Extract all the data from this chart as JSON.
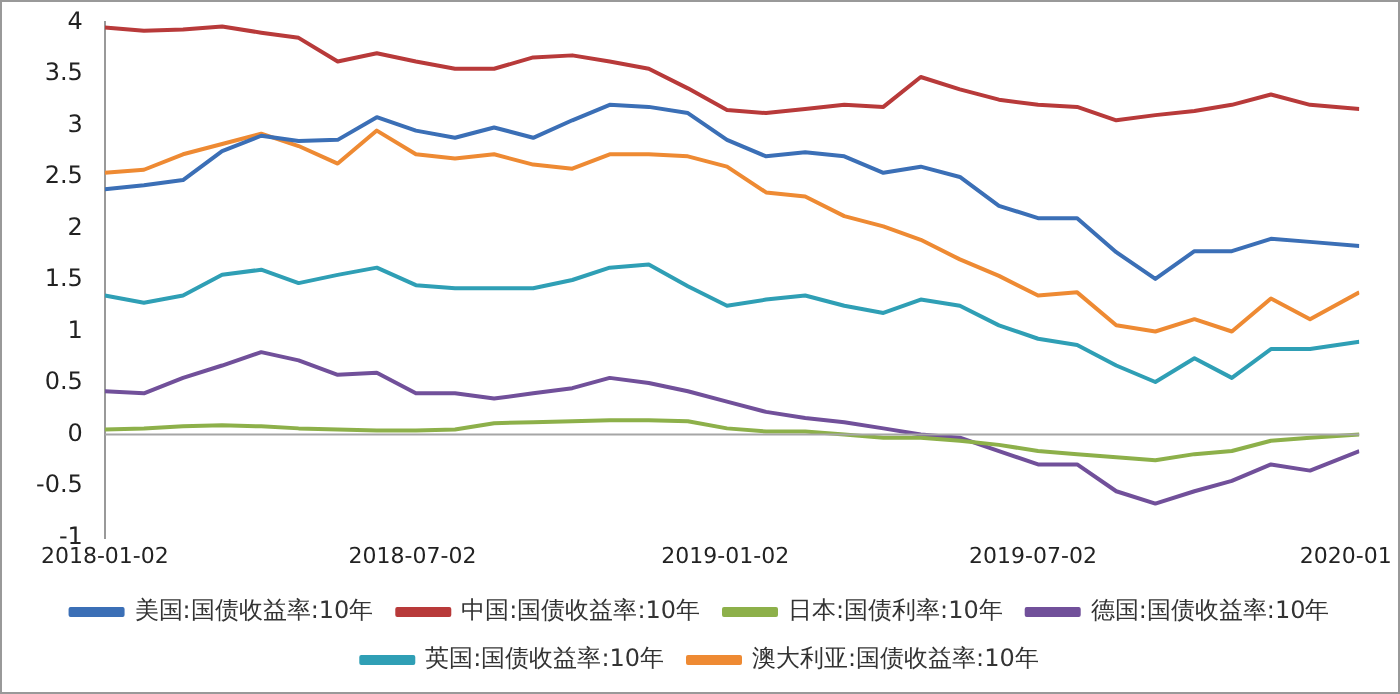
{
  "chart_data": {
    "type": "line",
    "x": [
      "2018-01-02",
      "2018-01-25",
      "2018-02-17",
      "2018-03-12",
      "2018-04-04",
      "2018-04-26",
      "2018-05-19",
      "2018-06-11",
      "2018-07-04",
      "2018-07-27",
      "2018-08-19",
      "2018-09-11",
      "2018-10-04",
      "2018-10-26",
      "2018-11-18",
      "2018-12-11",
      "2019-01-03",
      "2019-01-26",
      "2019-02-18",
      "2019-03-13",
      "2019-04-05",
      "2019-04-27",
      "2019-05-20",
      "2019-06-12",
      "2019-07-05",
      "2019-07-28",
      "2019-08-20",
      "2019-09-12",
      "2019-10-05",
      "2019-10-27",
      "2019-11-19",
      "2019-12-12",
      "2020-01-10"
    ],
    "series": [
      {
        "name": "美国:国债收益率:10年",
        "color": "#3b6fb6",
        "values": [
          2.38,
          2.42,
          2.47,
          2.75,
          2.9,
          2.85,
          2.86,
          3.08,
          2.95,
          2.88,
          2.98,
          2.88,
          3.05,
          3.2,
          3.18,
          3.12,
          2.86,
          2.7,
          2.74,
          2.7,
          2.54,
          2.6,
          2.5,
          2.22,
          2.1,
          2.1,
          1.77,
          1.51,
          1.78,
          1.78,
          1.9,
          1.87,
          1.83
        ]
      },
      {
        "name": "中国:国债收益率:10年",
        "color": "#b83a3a",
        "values": [
          3.95,
          3.92,
          3.93,
          3.96,
          3.9,
          3.85,
          3.62,
          3.7,
          3.62,
          3.55,
          3.55,
          3.66,
          3.68,
          3.62,
          3.55,
          3.36,
          3.15,
          3.12,
          3.16,
          3.2,
          3.18,
          3.47,
          3.35,
          3.25,
          3.2,
          3.18,
          3.05,
          3.1,
          3.14,
          3.2,
          3.3,
          3.2,
          3.16
        ]
      },
      {
        "name": "日本:国债利率:10年",
        "color": "#8db04a",
        "values": [
          0.05,
          0.06,
          0.08,
          0.09,
          0.08,
          0.06,
          0.05,
          0.04,
          0.04,
          0.05,
          0.11,
          0.12,
          0.13,
          0.14,
          0.14,
          0.13,
          0.06,
          0.03,
          0.03,
          0.0,
          -0.03,
          -0.03,
          -0.06,
          -0.1,
          -0.16,
          -0.19,
          -0.22,
          -0.25,
          -0.19,
          -0.16,
          -0.06,
          -0.03,
          0.0
        ]
      },
      {
        "name": "德国:国债收益率:10年",
        "color": "#71509a",
        "values": [
          0.42,
          0.4,
          0.55,
          0.67,
          0.8,
          0.72,
          0.58,
          0.6,
          0.4,
          0.4,
          0.35,
          0.4,
          0.45,
          0.55,
          0.5,
          0.42,
          0.32,
          0.22,
          0.16,
          0.12,
          0.06,
          0.0,
          -0.03,
          -0.16,
          -0.29,
          -0.29,
          -0.55,
          -0.67,
          -0.55,
          -0.45,
          -0.29,
          -0.35,
          -0.16
        ]
      },
      {
        "name": "英国:国债收益率:10年",
        "color": "#2f9fb5",
        "values": [
          1.35,
          1.28,
          1.35,
          1.55,
          1.6,
          1.47,
          1.55,
          1.62,
          1.45,
          1.42,
          1.42,
          1.42,
          1.5,
          1.62,
          1.65,
          1.44,
          1.25,
          1.31,
          1.35,
          1.25,
          1.18,
          1.31,
          1.25,
          1.06,
          0.93,
          0.87,
          0.67,
          0.51,
          0.74,
          0.55,
          0.83,
          0.83,
          0.9
        ]
      },
      {
        "name": "澳大利亚:国债收益率:10年",
        "color": "#ee8a33",
        "values": [
          2.54,
          2.57,
          2.72,
          2.82,
          2.92,
          2.8,
          2.63,
          2.95,
          2.72,
          2.68,
          2.72,
          2.62,
          2.58,
          2.72,
          2.72,
          2.7,
          2.6,
          2.35,
          2.31,
          2.12,
          2.02,
          1.89,
          1.7,
          1.54,
          1.35,
          1.38,
          1.06,
          1.0,
          1.12,
          1.0,
          1.32,
          1.12,
          1.38
        ]
      }
    ],
    "xlim": [
      "2018-01-02",
      "2020-01-10"
    ],
    "xticks": [
      "2018-01-02",
      "2018-07-02",
      "2019-01-02",
      "2019-07-02",
      {
        "value": "2020-01-02",
        "label": "2020-01"
      }
    ],
    "ylim": [
      -1,
      4
    ],
    "yticks": [
      -1,
      -0.5,
      0,
      0.5,
      1,
      1.5,
      2,
      2.5,
      3,
      3.5,
      4
    ],
    "ref_lines": [
      {
        "axis": "y",
        "value": 0,
        "color": "#a6a6a6"
      }
    ],
    "grid": false,
    "legend": "bottom",
    "marker": "none",
    "line_style": "solid"
  }
}
